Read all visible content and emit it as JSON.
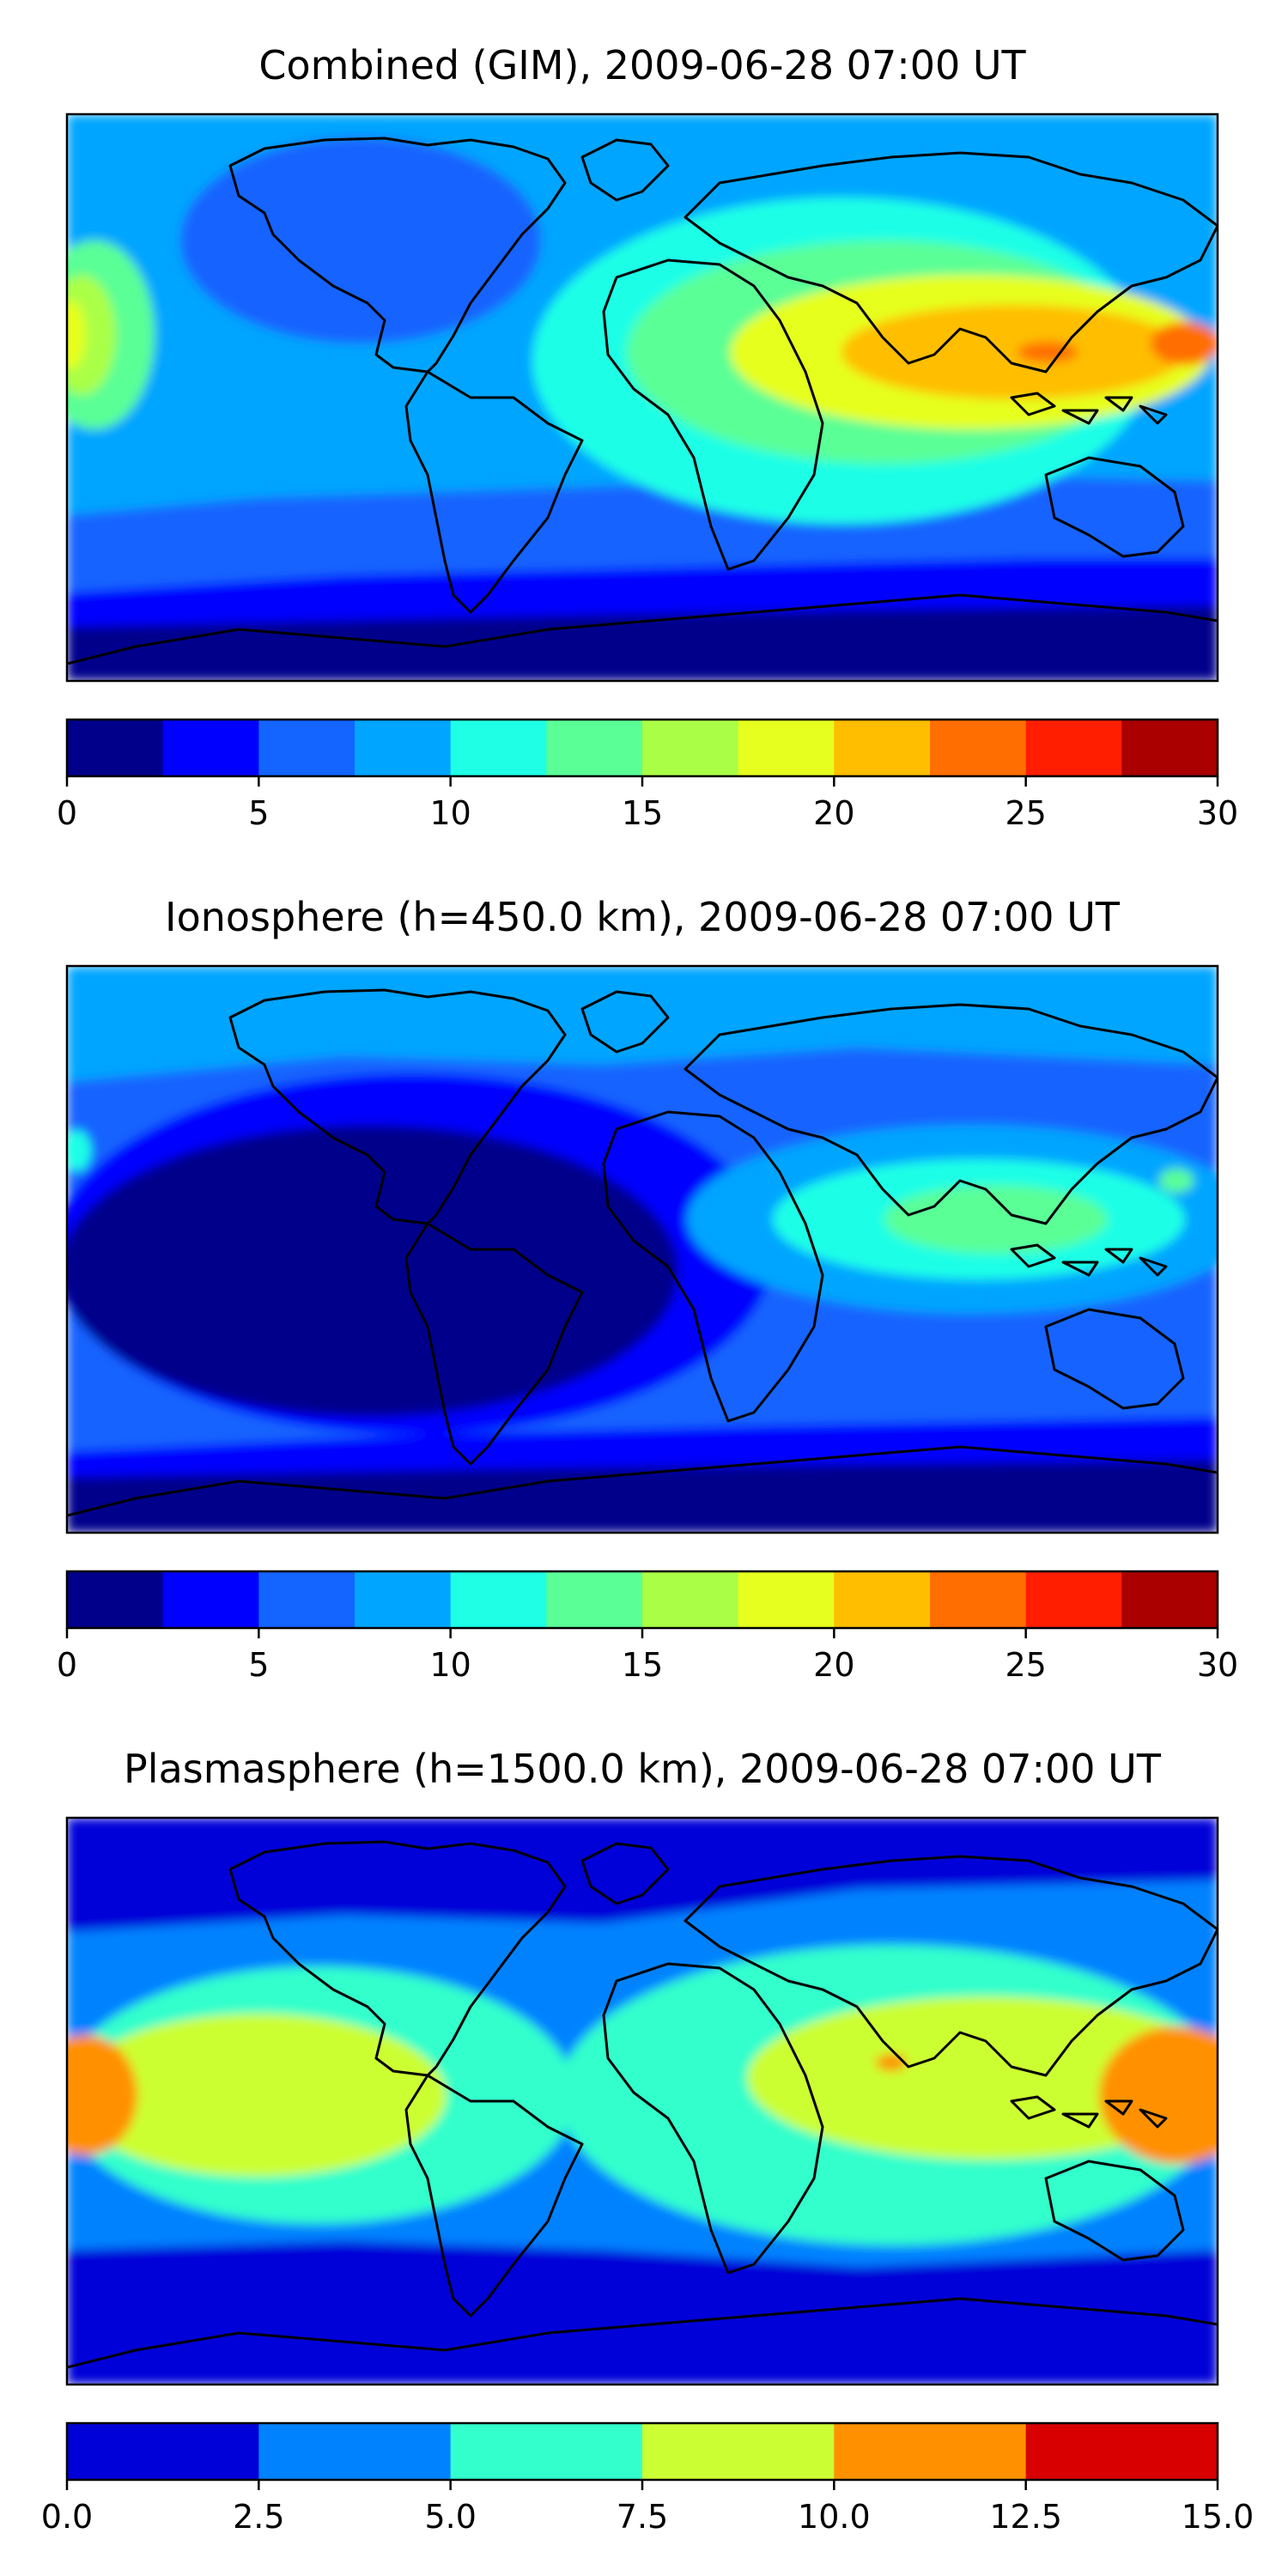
{
  "chart_data": [
    {
      "type": "heatmap",
      "title": "Combined (GIM), 2009-06-28 07:00 UT",
      "colorbar": {
        "ticks": [
          "0",
          "5",
          "10",
          "15",
          "20",
          "25",
          "30"
        ],
        "levels": [
          0,
          2.5,
          5,
          7.5,
          10,
          12.5,
          15,
          17.5,
          20,
          22.5,
          25,
          27.5,
          30
        ],
        "colors": [
          "#00008b",
          "#0000ff",
          "#1464ff",
          "#00a5ff",
          "#1effe6",
          "#5aff96",
          "#aaff46",
          "#e6ff1e",
          "#ffbe00",
          "#ff6e00",
          "#ff1e00",
          "#aa0000"
        ]
      },
      "map_regions": [
        {
          "label": "south polar band",
          "approx_value": 1.5
        },
        {
          "label": "northern polar cap",
          "approx_value": 4
        },
        {
          "label": "western Pacific / Americas mid-latitudes",
          "approx_value": 9
        },
        {
          "label": "eastern Pacific equatorial",
          "approx_value": 17
        },
        {
          "label": "Africa / Indian Ocean",
          "approx_value": 13
        },
        {
          "label": "South & East Asia equatorial crest",
          "approx_value": 22
        }
      ]
    },
    {
      "type": "heatmap",
      "title": "Ionosphere  (h=450.0 km), 2009-06-28 07:00 UT",
      "colorbar": {
        "ticks": [
          "0",
          "5",
          "10",
          "15",
          "20",
          "25",
          "30"
        ],
        "levels": [
          0,
          2.5,
          5,
          7.5,
          10,
          12.5,
          15,
          17.5,
          20,
          22.5,
          25,
          27.5,
          30
        ],
        "colors": [
          "#00008b",
          "#0000ff",
          "#1464ff",
          "#00a5ff",
          "#1effe6",
          "#5aff96",
          "#aaff46",
          "#e6ff1e",
          "#ffbe00",
          "#ff6e00",
          "#ff1e00",
          "#aa0000"
        ]
      },
      "map_regions": [
        {
          "label": "Americas / Pacific",
          "approx_value": 2
        },
        {
          "label": "high-latitude north",
          "approx_value": 8
        },
        {
          "label": "Africa / Europe",
          "approx_value": 6
        },
        {
          "label": "Asia equatorial",
          "approx_value": 12
        },
        {
          "label": "South-East Asia crest",
          "approx_value": 14
        }
      ]
    },
    {
      "type": "heatmap",
      "title": "Plasmasphere (h=1500.0 km), 2009-06-28 07:00 UT",
      "colorbar": {
        "ticks": [
          "0.0",
          "2.5",
          "5.0",
          "7.5",
          "10.0",
          "12.5",
          "15.0"
        ],
        "levels": [
          0,
          2.5,
          5,
          7.5,
          10,
          12.5,
          15
        ],
        "colors": [
          "#0000d8",
          "#0082ff",
          "#33ffcc",
          "#ccff33",
          "#ff9100",
          "#d80000"
        ]
      },
      "map_regions": [
        {
          "label": "polar regions",
          "approx_value": 1.5
        },
        {
          "label": "mid-latitudes",
          "approx_value": 4
        },
        {
          "label": "tropical belt",
          "approx_value": 6.5
        },
        {
          "label": "equatorial crest",
          "approx_value": 9
        },
        {
          "label": "Pacific / West Pacific maxima",
          "approx_value": 11
        }
      ]
    }
  ]
}
